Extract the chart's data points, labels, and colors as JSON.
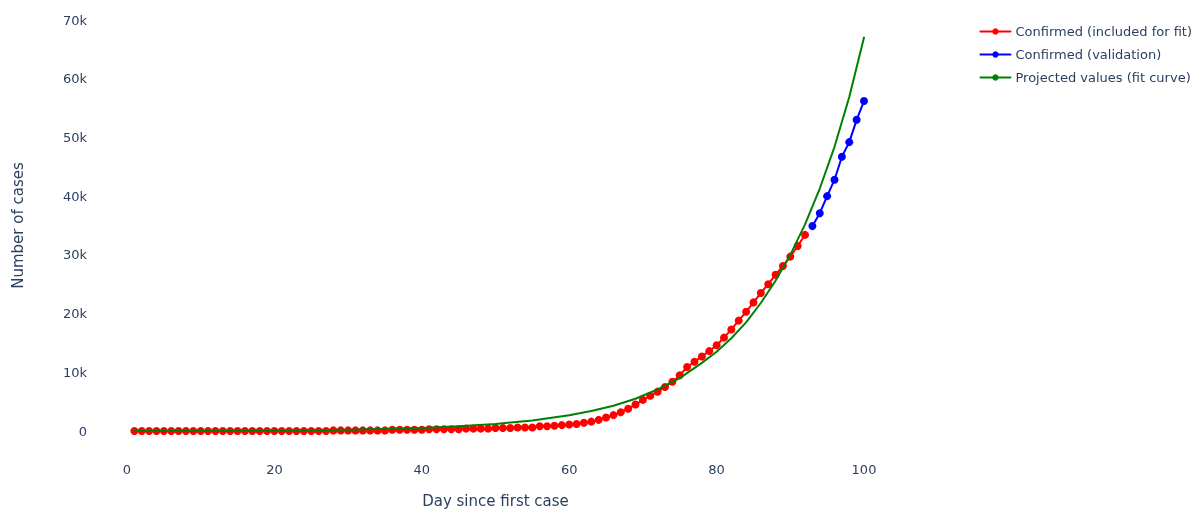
{
  "chart_data": {
    "type": "line",
    "xlabel": "Day since first case",
    "ylabel": "Number of cases",
    "xlim": [
      0,
      100
    ],
    "xticks": [
      0,
      20,
      40,
      60,
      80,
      100
    ],
    "ylim": [
      0,
      70000
    ],
    "yticks": [
      0,
      {
        "value": 10000,
        "label": "10k"
      },
      {
        "value": 20000,
        "label": "20k"
      },
      {
        "value": 30000,
        "label": "30k"
      },
      {
        "value": 40000,
        "label": "40k"
      },
      {
        "value": 50000,
        "label": "50k"
      },
      {
        "value": 60000,
        "label": "60k"
      },
      {
        "value": 70000,
        "label": "70k"
      }
    ],
    "grid": false,
    "legend": "top right",
    "series": [
      {
        "name": "Confirmed (included for fit)",
        "color": "#ff0000",
        "marker": "circle",
        "x": [
          1,
          2,
          3,
          4,
          5,
          6,
          7,
          8,
          9,
          10,
          11,
          12,
          13,
          14,
          15,
          16,
          17,
          18,
          19,
          20,
          21,
          22,
          23,
          24,
          25,
          26,
          27,
          28,
          29,
          30,
          31,
          32,
          33,
          34,
          35,
          36,
          37,
          38,
          39,
          40,
          41,
          42,
          43,
          44,
          45,
          46,
          47,
          48,
          49,
          50,
          51,
          52,
          53,
          54,
          55,
          56,
          57,
          58,
          59,
          60,
          61,
          62,
          63,
          64,
          65,
          66,
          67,
          68,
          69,
          70,
          71,
          72,
          73,
          74,
          75,
          76,
          77,
          78,
          79,
          80,
          81,
          82,
          83,
          84,
          85,
          86,
          87,
          88,
          89,
          90,
          91,
          92
        ],
        "values": [
          0,
          0,
          0,
          0,
          0,
          0,
          0,
          0,
          0,
          0,
          0,
          0,
          0,
          0,
          0,
          0,
          0,
          0,
          0,
          0,
          0,
          0,
          0,
          0,
          0,
          0,
          0,
          100,
          100,
          100,
          100,
          100,
          100,
          100,
          100,
          200,
          200,
          200,
          200,
          200,
          300,
          300,
          300,
          300,
          300,
          400,
          400,
          400,
          400,
          500,
          500,
          500,
          600,
          600,
          600,
          800,
          800,
          900,
          1000,
          1100,
          1200,
          1400,
          1600,
          1900,
          2300,
          2700,
          3200,
          3800,
          4500,
          5300,
          6000,
          6700,
          7500,
          8400,
          9500,
          10900,
          11800,
          12700,
          13600,
          14600,
          15900,
          17300,
          18800,
          20300,
          21900,
          23500,
          25000,
          26600,
          28100,
          29700,
          31500,
          33400
        ]
      },
      {
        "name": "Confirmed (validation)",
        "color": "#0000ff",
        "marker": "circle",
        "x": [
          93,
          94,
          95,
          96,
          97,
          98,
          99,
          100
        ],
        "values": [
          34900,
          37100,
          40000,
          42800,
          46700,
          49200,
          53000,
          56200
        ]
      },
      {
        "name": "Projected values (fit curve)",
        "color": "#008000",
        "marker": "none",
        "x": [
          1,
          10,
          20,
          30,
          40,
          45,
          50,
          55,
          60,
          63,
          66,
          69,
          72,
          75,
          78,
          80,
          82,
          84,
          86,
          88,
          90,
          92,
          94,
          96,
          98,
          100
        ],
        "values": [
          0,
          0,
          100,
          200,
          500,
          800,
          1200,
          1800,
          2700,
          3400,
          4300,
          5500,
          7100,
          9000,
          11600,
          13500,
          15800,
          18500,
          21800,
          25600,
          30000,
          35200,
          41300,
          48400,
          56900,
          67000
        ]
      }
    ]
  }
}
